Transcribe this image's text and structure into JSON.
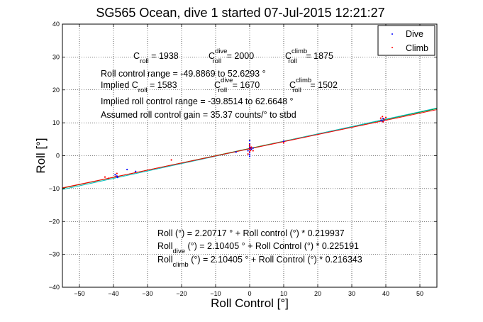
{
  "chart_data": {
    "type": "scatter",
    "title": "SG565 Ocean, dive 1 started 07-Jul-2015 12:21:27",
    "xlabel": "Roll Control [°]",
    "ylabel": "Roll [°]",
    "xlim": [
      -55,
      55
    ],
    "ylim": [
      -40,
      40
    ],
    "xticks": [
      -50,
      -40,
      -30,
      -20,
      -10,
      0,
      10,
      20,
      30,
      40,
      50
    ],
    "yticks": [
      -40,
      -30,
      -20,
      -10,
      0,
      10,
      20,
      30,
      40
    ],
    "grid": true,
    "legend_position": "top-right",
    "legend": [
      "Dive",
      "Climb"
    ],
    "colors": {
      "dive": "#0000ff",
      "climb": "#ff0000",
      "fit_all": "#008000",
      "fit_dive": "#00bfbf",
      "fit_climb": "#ff0000"
    },
    "series": [
      {
        "name": "Dive",
        "color": "#0000ff",
        "points": [
          [
            -39.5,
            -5.8
          ],
          [
            -39,
            -6.2
          ],
          [
            -38.8,
            -6.6
          ],
          [
            -36,
            -4.2
          ],
          [
            -33.5,
            -4.8
          ],
          [
            -4,
            1.1
          ],
          [
            -0.5,
            1.5
          ],
          [
            0,
            1
          ],
          [
            0,
            1.8
          ],
          [
            0,
            2.2
          ],
          [
            0,
            2.6
          ],
          [
            0,
            3
          ],
          [
            0,
            3.6
          ],
          [
            0,
            4.6
          ],
          [
            0,
            0.4
          ],
          [
            0,
            -0.2
          ],
          [
            0.3,
            2.4
          ],
          [
            0.5,
            1.9
          ],
          [
            1,
            2.3
          ],
          [
            10,
            4.4
          ],
          [
            38.6,
            10.8
          ],
          [
            39,
            10.4
          ],
          [
            39.2,
            11.3
          ],
          [
            39.5,
            10.9
          ]
        ]
      },
      {
        "name": "Climb",
        "color": "#ff0000",
        "points": [
          [
            -42.5,
            -6.5
          ],
          [
            -41.5,
            -6.9
          ],
          [
            -39.5,
            -6.4
          ],
          [
            -39,
            -5.4
          ],
          [
            -23,
            -1.3
          ],
          [
            -0.5,
            0.5
          ],
          [
            0,
            1.2
          ],
          [
            0,
            2
          ],
          [
            0,
            2.8
          ],
          [
            0,
            3.3
          ],
          [
            0.2,
            1.6
          ],
          [
            0.5,
            2.6
          ],
          [
            1,
            1.5
          ],
          [
            10,
            3.9
          ],
          [
            38.5,
            11.4
          ],
          [
            39,
            11.9
          ],
          [
            39.2,
            10.3
          ],
          [
            39.5,
            11.1
          ],
          [
            40,
            11.6
          ]
        ]
      }
    ],
    "fits": [
      {
        "name": "all",
        "intercept": 2.20717,
        "slope": 0.219937,
        "color": "#008000"
      },
      {
        "name": "dive",
        "intercept": 2.10405,
        "slope": 0.225191,
        "color": "#00bfbf"
      },
      {
        "name": "climb",
        "intercept": 2.10405,
        "slope": 0.216343,
        "color": "#ff0000"
      }
    ],
    "annotations": {
      "line1": {
        "c": "C",
        "roll": "roll",
        "eq1": " = 1938",
        "dive": "dive",
        "eq2": " = 2000",
        "climb": "climb",
        "eq3": " = 1875"
      },
      "range": "Roll control range = -49.8869 to 52.6293 °",
      "implied": {
        "text": "Implied C",
        "roll": "roll",
        "eq1": " = 1583",
        "dive": "dive",
        "eq2": " = 1670",
        "climb": "climb",
        "eq3": " = 1502"
      },
      "implied_range": "Implied roll control range = -39.8514 to 62.6648 °",
      "gain": "Assumed roll control gain = 35.37 counts/° to stbd",
      "fit1": "Roll (°) = 2.20717 ° + Roll control (°) * 0.219937",
      "fit2": {
        "pre": "Roll",
        "sub": "dive",
        "post": " (°) = 2.10405 ° + Roll Control (°) * 0.225191"
      },
      "fit3": {
        "pre": "Roll",
        "sub": "climb",
        "post": " (°) = 2.10405 ° + Roll Control (°) * 0.216343"
      }
    }
  }
}
